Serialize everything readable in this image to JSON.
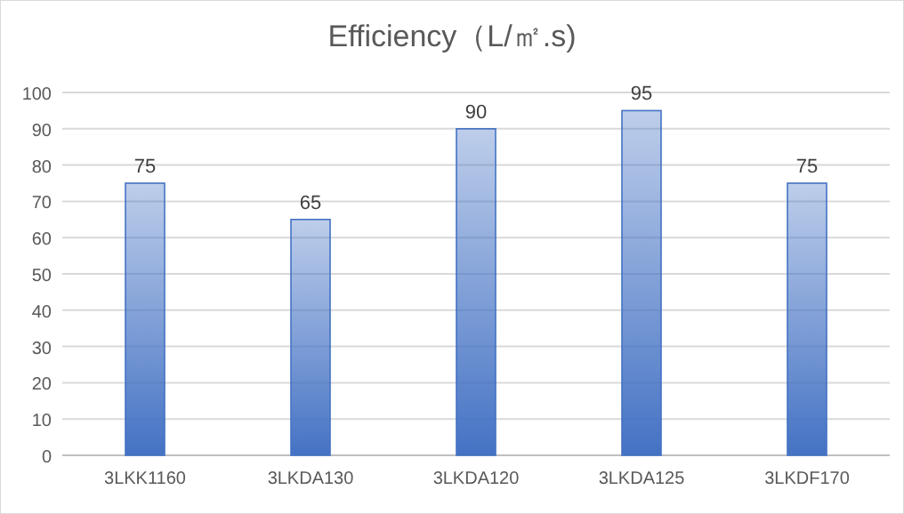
{
  "chart_data": {
    "type": "bar",
    "title": "Efficiency（L/㎡.s)",
    "categories": [
      "3LKK1160",
      "3LKDA130",
      "3LKDA120",
      "3LKDA125",
      "3LKDF170"
    ],
    "values": [
      75,
      65,
      90,
      95,
      75
    ],
    "color": "#4472c4",
    "ylim": [
      0,
      100
    ],
    "yticks": [
      0,
      10,
      20,
      30,
      40,
      50,
      60,
      70,
      80,
      90,
      100
    ],
    "grid": "y",
    "data_labels": true
  }
}
